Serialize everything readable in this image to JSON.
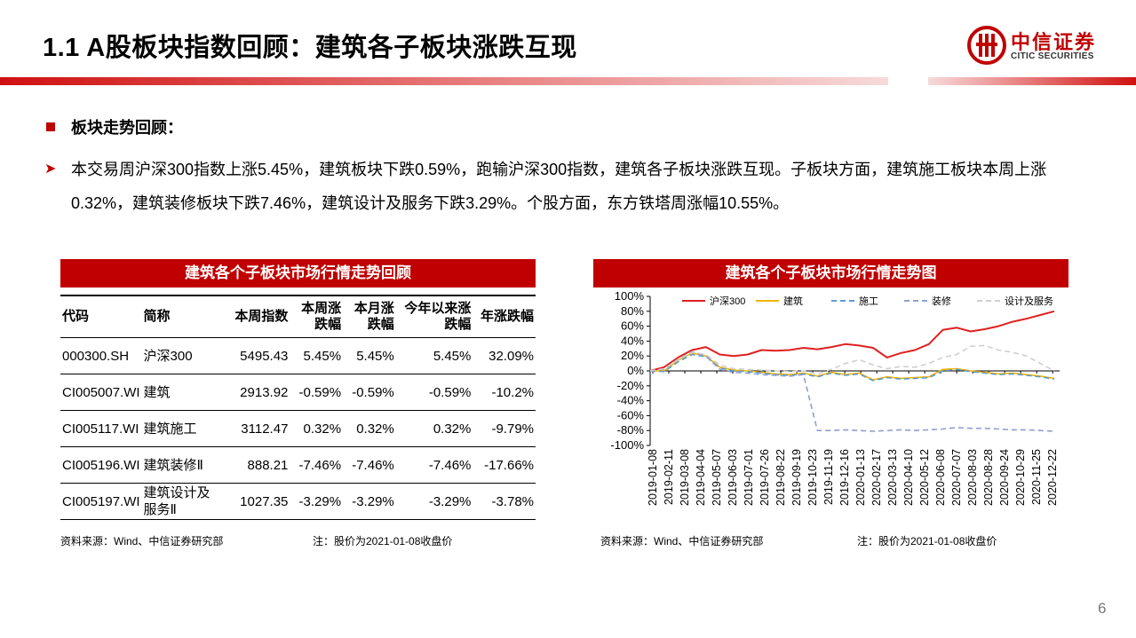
{
  "page": {
    "title": "1.1 A股板块指数回顾：建筑各子板块涨跌互现",
    "logo_cn": "中信证券",
    "logo_en": "CITIC SECURITIES",
    "bullet_heading": "板块走势回顾：",
    "paragraph": "本交易周沪深300指数上涨5.45%，建筑板块下跌0.59%，跑输沪深300指数，建筑各子板块涨跌互现。子板块方面，建筑施工板块本周上涨0.32%，建筑装修板块下跌7.46%，建筑设计及服务下跌3.29%。个股方面，东方铁塔周涨幅10.55%。",
    "page_number": "6",
    "accent_color": "#c00000"
  },
  "table": {
    "title": "建筑各个子板块市场行情走势回顾",
    "headers": [
      "代码",
      "简称",
      "本周指数",
      "本周涨跌幅",
      "本月涨跌幅",
      "今年以来涨跌幅",
      "年涨跌幅"
    ],
    "rows": [
      [
        "000300.SH",
        "沪深300",
        "5495.43",
        "5.45%",
        "5.45%",
        "5.45%",
        "32.09%"
      ],
      [
        "CI005007.WI",
        "建筑",
        "2913.92",
        "-0.59%",
        "-0.59%",
        "-0.59%",
        "-10.2%"
      ],
      [
        "CI005117.WI",
        "建筑施工",
        "3112.47",
        "0.32%",
        "0.32%",
        "0.32%",
        "-9.79%"
      ],
      [
        "CI005196.WI",
        "建筑装修Ⅱ",
        "888.21",
        "-7.46%",
        "-7.46%",
        "-7.46%",
        "-17.66%"
      ],
      [
        "CI005197.WI",
        "建筑设计及服务Ⅱ",
        "1027.35",
        "-3.29%",
        "-3.29%",
        "-3.29%",
        "-3.78%"
      ]
    ],
    "source": "资料来源：Wind、中信证券研究部",
    "note": "注：股价为2021-01-08收盘价"
  },
  "chart_box": {
    "source": "资料来源：Wind、中信证券研究部",
    "note": "注：股价为2021-01-08收盘价"
  },
  "chart_data": {
    "type": "line",
    "title": "建筑各个子板块市场行情走势图",
    "ylim": [
      -100,
      100
    ],
    "yticks": [
      100,
      80,
      60,
      40,
      20,
      0,
      -20,
      -40,
      -60,
      -80,
      -100
    ],
    "y_format": "percent",
    "x_tick_labels": [
      "2019-01-08",
      "2019-02-11",
      "2019-03-08",
      "2019-04-04",
      "2019-05-07",
      "2019-06-03",
      "2019-07-01",
      "2019-07-26",
      "2019-08-22",
      "2019-09-19",
      "2019-10-23",
      "2019-11-19",
      "2019-12-16",
      "2020-01-13",
      "2020-02-17",
      "2020-03-13",
      "2020-04-10",
      "2020-05-12",
      "2020-06-08",
      "2020-07-07",
      "2020-08-03",
      "2020-08-28",
      "2020-09-24",
      "2020-10-29",
      "2020-11-25",
      "2020-12-22"
    ],
    "legend_position": "top",
    "series": [
      {
        "name": "沪深300",
        "color": "#e02020",
        "dash": "solid",
        "values": [
          0,
          5,
          18,
          28,
          32,
          22,
          20,
          22,
          28,
          27,
          28,
          31,
          29,
          32,
          36,
          34,
          31,
          18,
          24,
          28,
          36,
          55,
          58,
          53,
          56,
          60,
          66,
          70,
          75,
          80
        ]
      },
      {
        "name": "建筑",
        "color": "#f0b400",
        "dash": "solid",
        "values": [
          0,
          0,
          14,
          24,
          20,
          5,
          1,
          0,
          -2,
          -4,
          -5,
          -3,
          -7,
          -2,
          -5,
          -3,
          -12,
          -8,
          -10,
          -9,
          -8,
          2,
          3,
          0,
          -2,
          -4,
          -3,
          -5,
          -7,
          -10
        ]
      },
      {
        "name": "施工",
        "color": "#5b9bd5",
        "dash": "dash",
        "values": [
          0,
          -1,
          12,
          22,
          19,
          4,
          0,
          -1,
          -3,
          -5,
          -6,
          -4,
          -8,
          -3,
          -6,
          -4,
          -13,
          -9,
          -11,
          -10,
          -9,
          0,
          2,
          -1,
          -3,
          -5,
          -4,
          -6,
          -8,
          -11
        ]
      },
      {
        "name": "装修",
        "color": "#8e9fd0",
        "dash": "dash",
        "values": [
          0,
          2,
          16,
          26,
          20,
          2,
          -2,
          -3,
          -5,
          -6,
          -7,
          -5,
          -80,
          -80,
          -79,
          -80,
          -81,
          -80,
          -79,
          -80,
          -79,
          -78,
          -76,
          -77,
          -77,
          -78,
          -79,
          -79,
          -80,
          -81
        ]
      },
      {
        "name": "设计及服务",
        "color": "#cfcfcf",
        "dash": "dash",
        "values": [
          0,
          3,
          15,
          25,
          22,
          8,
          3,
          2,
          1,
          0,
          -1,
          0,
          -4,
          2,
          10,
          15,
          8,
          3,
          6,
          5,
          10,
          18,
          22,
          33,
          34,
          28,
          25,
          20,
          10,
          0
        ]
      }
    ]
  }
}
